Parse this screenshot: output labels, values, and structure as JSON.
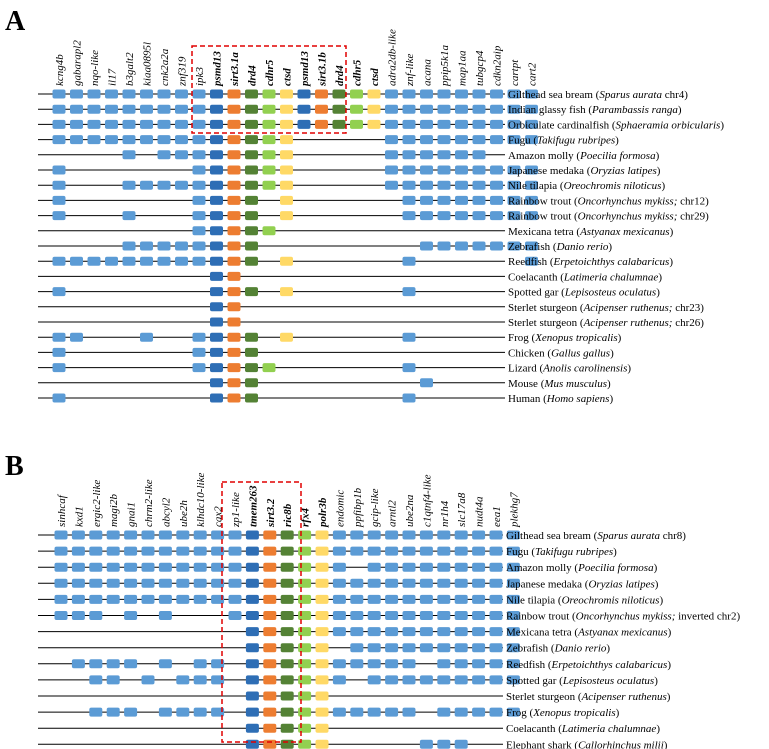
{
  "colors": {
    "B": "#5b9bd5",
    "D": "#2e6eb5",
    "O": "#ed7d31",
    "G": "#548235",
    "L": "#92d050",
    "Y": "#ffd966",
    "line": "#000000",
    "highlight": "#e00000"
  },
  "panels": [
    {
      "letter": "A",
      "genes": [
        {
          "name": "kcng4b",
          "bold": false
        },
        {
          "name": "gabarapl2",
          "bold": false
        },
        {
          "name": "nqo-like",
          "bold": false
        },
        {
          "name": "il17",
          "bold": false
        },
        {
          "name": "b3galt2",
          "bold": false
        },
        {
          "name": "kiaa0895l",
          "bold": false
        },
        {
          "name": "cnk2a2a",
          "bold": false
        },
        {
          "name": "znf319",
          "bold": false
        },
        {
          "name": "ipk3",
          "bold": false
        },
        {
          "name": "psmd13",
          "bold": true
        },
        {
          "name": "sirt3.1a",
          "bold": true
        },
        {
          "name": "drd4",
          "bold": true
        },
        {
          "name": "cdhr5",
          "bold": true
        },
        {
          "name": "ctsd",
          "bold": true
        },
        {
          "name": "psmd13",
          "bold": true
        },
        {
          "name": "sirt3.1b",
          "bold": true
        },
        {
          "name": "drd4",
          "bold": true
        },
        {
          "name": "cdhr5",
          "bold": true
        },
        {
          "name": "ctsd",
          "bold": true
        },
        {
          "name": "adra2db-like",
          "bold": false
        },
        {
          "name": "znf-like",
          "bold": false
        },
        {
          "name": "acana",
          "bold": false
        },
        {
          "name": "ppip5k1a",
          "bold": false
        },
        {
          "name": "map1aa",
          "bold": false
        },
        {
          "name": "tubgcp4",
          "bold": false
        },
        {
          "name": "cdkn2aip",
          "bold": false
        },
        {
          "name": "cartpt",
          "bold": false
        },
        {
          "name": "cart2",
          "bold": false
        }
      ],
      "rows": [
        {
          "name": "Gilthead sea bream",
          "latin": "Sparus aurata",
          "suffix": "chr4",
          "pattern": "BBBBBBBBBDOGLYDOGLYBBBBBBBBB"
        },
        {
          "name": "Indian glassy fish",
          "latin": "Parambassis ranga",
          "suffix": "",
          "pattern": "BBBBBBBBBDOGLYDOGLYBBBBBBBBB"
        },
        {
          "name": "Orbiculate cardinalfish",
          "latin": "Sphaeramia orbicularis",
          "suffix": "",
          "pattern": "BBBBBBBBBDOGLYDOGLYBBBBBBBBB"
        },
        {
          "name": "Fugu",
          "latin": "Takifugu rubripes",
          "suffix": "",
          "pattern": "BBBBBBBBBDOGLY.....BBBBBBBBB"
        },
        {
          "name": "Amazon molly",
          "latin": "Poecilia formosa",
          "suffix": "",
          "pattern": "....B.BBBDOGLY.....BBBBBB..."
        },
        {
          "name": "Japanese medaka",
          "latin": "Oryzias latipes",
          "suffix": "",
          "pattern": "B.......BDOGLY.....BBBBBBBBB"
        },
        {
          "name": "Nile tilapia",
          "latin": "Oreochromis niloticus",
          "suffix": "",
          "pattern": "B...BBBBBDOGLY.....BBBBBBBBB"
        },
        {
          "name": "Rainbow trout",
          "latin": "Oncorhynchus mykiss;",
          "suffix": "chr12",
          "pattern": "B.......BDOG.Y......BBBBBBBB"
        },
        {
          "name": "Rainbow trout",
          "latin": "Oncorhynchus mykiss;",
          "suffix": "chr29",
          "pattern": "B...B...BDOG.Y......BBBBBBBB"
        },
        {
          "name": "Mexicana tetra",
          "latin": "Astyanax mexicanus",
          "suffix": "",
          "pattern": "........BDOGL..............."
        },
        {
          "name": "Zebrafish",
          "latin": "Danio rerio",
          "suffix": "",
          "pattern": "....BBBBBDOG.........BBBBBBB"
        },
        {
          "name": "Reedfish",
          "latin": "Erpetoichthys calabaricus",
          "suffix": "",
          "pattern": "BBBBBBBBBDOG.Y......B......B"
        },
        {
          "name": "Coelacanth",
          "latin": "Latimeria chalumnae",
          "suffix": "",
          "pattern": ".........DO................."
        },
        {
          "name": "Spotted gar",
          "latin": "Lepisosteus oculatus",
          "suffix": "",
          "pattern": "B........DOG.Y......B......."
        },
        {
          "name": "Sterlet sturgeon",
          "latin": "Acipenser ruthenus;",
          "suffix": "chr23",
          "pattern": ".........DO................."
        },
        {
          "name": "Sterlet sturgeon",
          "latin": "Acipenser ruthenus;",
          "suffix": "chr26",
          "pattern": ".........DO................."
        },
        {
          "name": "Frog",
          "latin": "Xenopus tropicalis",
          "suffix": "",
          "pattern": "BB...B..BDOG.Y......B......."
        },
        {
          "name": "Chicken",
          "latin": "Gallus gallus",
          "suffix": "",
          "pattern": "B.......BDOG................"
        },
        {
          "name": "Lizard",
          "latin": "Anolis carolinensis",
          "suffix": "",
          "pattern": "B.......BDOGL.......B......."
        },
        {
          "name": "Mouse",
          "latin": "Mus musculus",
          "suffix": "",
          "pattern": ".........DOG.........B......"
        },
        {
          "name": "Human",
          "latin": "Homo sapiens",
          "suffix": "",
          "pattern": "B........DOG........B......."
        }
      ]
    },
    {
      "letter": "B",
      "genes": [
        {
          "name": "sinhcaf",
          "bold": false
        },
        {
          "name": "kxd1",
          "bold": false
        },
        {
          "name": "ergic2-like",
          "bold": false
        },
        {
          "name": "magi2b",
          "bold": false
        },
        {
          "name": "gnai1",
          "bold": false
        },
        {
          "name": "chrm2-like",
          "bold": false
        },
        {
          "name": "abcyl2",
          "bold": false
        },
        {
          "name": "ube2h",
          "bold": false
        },
        {
          "name": "klhdc10-like",
          "bold": false
        },
        {
          "name": "cax2",
          "bold": false
        },
        {
          "name": "zp1-like",
          "bold": false
        },
        {
          "name": "tmem263",
          "bold": true
        },
        {
          "name": "sirt3.2",
          "bold": true
        },
        {
          "name": "ric8b",
          "bold": true
        },
        {
          "name": "rfx4",
          "bold": true
        },
        {
          "name": "polr3b",
          "bold": true
        },
        {
          "name": "endomic",
          "bold": false
        },
        {
          "name": "ppfibp1b",
          "bold": false
        },
        {
          "name": "gcip-like",
          "bold": false
        },
        {
          "name": "arntl2",
          "bold": false
        },
        {
          "name": "ube2na",
          "bold": false
        },
        {
          "name": "c1qtnf4-like",
          "bold": false
        },
        {
          "name": "nr1h4",
          "bold": false
        },
        {
          "name": "slc17a8",
          "bold": false
        },
        {
          "name": "nudt4a",
          "bold": false
        },
        {
          "name": "eea1",
          "bold": false
        },
        {
          "name": "plekhg7",
          "bold": false
        }
      ],
      "rows": [
        {
          "name": "Gilthead sea bream",
          "latin": "Sparus aurata",
          "suffix": "chr8",
          "pattern": "BBBBBBBBBBBDOGLYBBBBBBBBBBB"
        },
        {
          "name": "Fugu",
          "latin": "Takifugu rubripes",
          "suffix": "",
          "pattern": "BBBBBBBBBBBDOGLYBBBBBBBBBBB"
        },
        {
          "name": "Amazon molly",
          "latin": "Poecilia formosa",
          "suffix": "",
          "pattern": "BBBBBBBBBBBDOGLYB.BBBBBBBBB"
        },
        {
          "name": "Japanese medaka",
          "latin": "Oryzias latipes",
          "suffix": "",
          "pattern": "BBBBBBBBBBBDOGLYBBBBBBBBBBB"
        },
        {
          "name": "Nile tilapia",
          "latin": "Oreochromis niloticus",
          "suffix": "",
          "pattern": "BBBBBBBBBBBDOGLYBBBBBBBBBBB"
        },
        {
          "name": "Rainbow trout",
          "latin": "Oncorhynchus mykiss;",
          "suffix": "inverted chr2",
          "pattern": "BBB.B.B...BDOGLYBBBBBBBBBBB"
        },
        {
          "name": "Mexicana tetra",
          "latin": "Astyanax mexicanus",
          "suffix": "",
          "pattern": "...........DOGLYBBBBBBBBBBB"
        },
        {
          "name": "Zebrafish",
          "latin": "Danio rerio",
          "suffix": "",
          "pattern": "...........DOGLY.BBBBBBBBBB"
        },
        {
          "name": "Reedfish",
          "latin": "Erpetoichthys calabaricus",
          "suffix": "",
          "pattern": ".BBBB.B.BB.DOGLYBBBBB.BBBBB"
        },
        {
          "name": "Spotted gar",
          "latin": "Lepisosteus oculatus",
          "suffix": "",
          "pattern": "..BB.B.BBB.DOGLYB.BBBBBBBBB"
        },
        {
          "name": "Sterlet sturgeon",
          "latin": "Acipenser ruthenus",
          "suffix": "",
          "pattern": "...........DOGLY..........."
        },
        {
          "name": "Frog",
          "latin": "Xenopus tropicalis",
          "suffix": "",
          "pattern": "..BBB.BBBB.DOGLYBBBBB.BBBBB"
        },
        {
          "name": "Coelacanth",
          "latin": "Latimeria chalumnae",
          "suffix": "",
          "pattern": "...........DOGLY..........."
        },
        {
          "name": "Elephant shark",
          "latin": "Callorhinchus milii",
          "suffix": "",
          "pattern": "...........DOGLY.....BBB..."
        }
      ]
    }
  ]
}
